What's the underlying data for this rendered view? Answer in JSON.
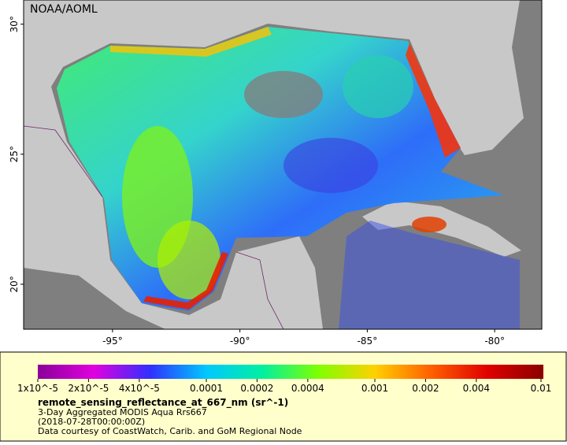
{
  "map": {
    "credit": "NOAA/AOML",
    "xlim": [
      -98.49,
      -78.15
    ],
    "ylim": [
      18.27,
      30.93
    ],
    "xticks": [
      {
        "value": -95,
        "label": "-95°"
      },
      {
        "value": -90,
        "label": "-90°"
      },
      {
        "value": -85,
        "label": "-85°"
      },
      {
        "value": -80,
        "label": "-80°"
      }
    ],
    "yticks": [
      {
        "value": 20,
        "label": "20°"
      },
      {
        "value": 25,
        "label": "25°"
      },
      {
        "value": 30,
        "label": "30°"
      }
    ]
  },
  "colorbar": {
    "scale": "log",
    "lim": [
      1e-05,
      0.01
    ],
    "colors": [
      "#8a0099",
      "#e000e0",
      "#3030ff",
      "#00c8ff",
      "#00f0a0",
      "#80ff00",
      "#ffd000",
      "#ff6000",
      "#e00000",
      "#8a0000"
    ],
    "ticks": [
      {
        "value": 1e-05,
        "label": "1x10^-5"
      },
      {
        "value": 2e-05,
        "label": "2x10^-5"
      },
      {
        "value": 4e-05,
        "label": "4x10^-5"
      },
      {
        "value": 0.0001,
        "label": "0.0001"
      },
      {
        "value": 0.0002,
        "label": "0.0002"
      },
      {
        "value": 0.0004,
        "label": "0.0004"
      },
      {
        "value": 0.001,
        "label": "0.001"
      },
      {
        "value": 0.002,
        "label": "0.002"
      },
      {
        "value": 0.004,
        "label": "0.004"
      },
      {
        "value": 0.01,
        "label": "0.01"
      }
    ]
  },
  "caption": {
    "variable": "remote_sensing_reflectance_at_667_nm (sr^-1)",
    "description": "3-Day Aggregated MODIS Aqua Rrs667",
    "time": "(2018-07-28T00:00:00Z)",
    "source": "Data courtesy of CoastWatch, Carib. and GoM Regional Node"
  }
}
